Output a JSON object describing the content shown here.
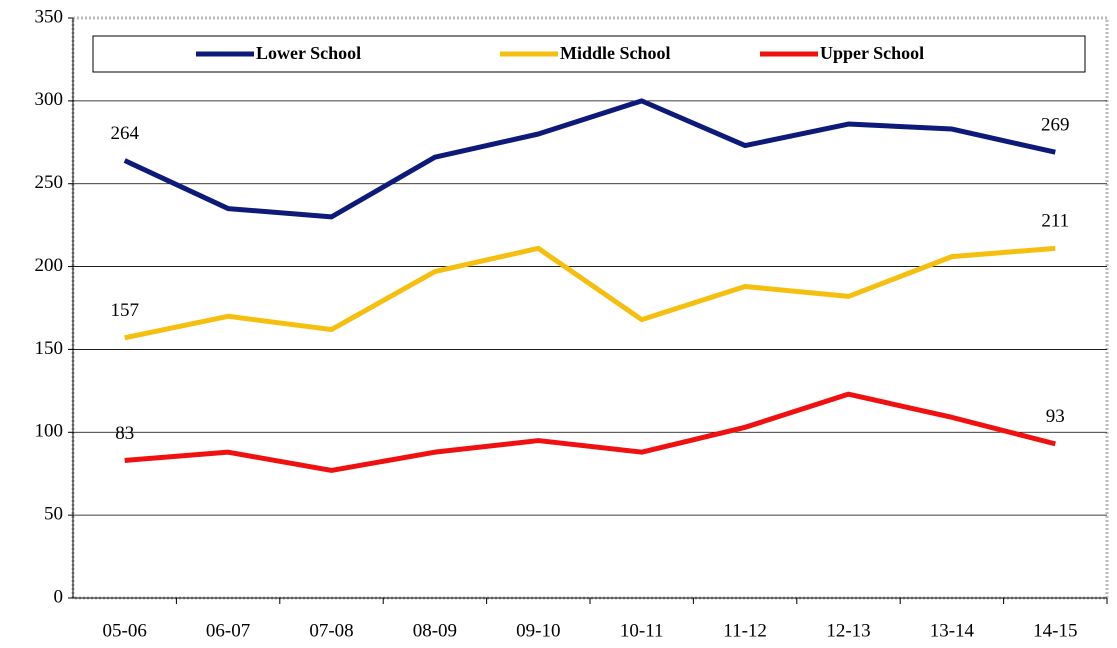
{
  "chart_data": {
    "type": "line",
    "categories": [
      "05-06",
      "06-07",
      "07-08",
      "08-09",
      "09-10",
      "10-11",
      "11-12",
      "12-13",
      "13-14",
      "14-15"
    ],
    "series": [
      {
        "name": "Lower School",
        "color": "#0d1a7a",
        "values": [
          264,
          235,
          230,
          266,
          280,
          300,
          273,
          286,
          283,
          269
        ],
        "value_labels": [
          "264",
          null,
          null,
          null,
          null,
          null,
          null,
          null,
          null,
          "269"
        ]
      },
      {
        "name": "Middle School",
        "color": "#f5bf0f",
        "values": [
          157,
          170,
          162,
          197,
          211,
          168,
          188,
          182,
          206,
          211
        ],
        "value_labels": [
          "157",
          null,
          null,
          null,
          null,
          null,
          null,
          null,
          null,
          "211"
        ]
      },
      {
        "name": "Upper School",
        "color": "#f01010",
        "values": [
          83,
          88,
          77,
          88,
          95,
          88,
          103,
          123,
          109,
          93
        ],
        "value_labels": [
          "83",
          null,
          null,
          null,
          null,
          null,
          null,
          null,
          null,
          "93"
        ]
      }
    ],
    "ylim": [
      0,
      350
    ],
    "yticks": [
      0,
      50,
      100,
      150,
      200,
      250,
      300,
      350
    ],
    "grid": true,
    "legend": "top"
  }
}
